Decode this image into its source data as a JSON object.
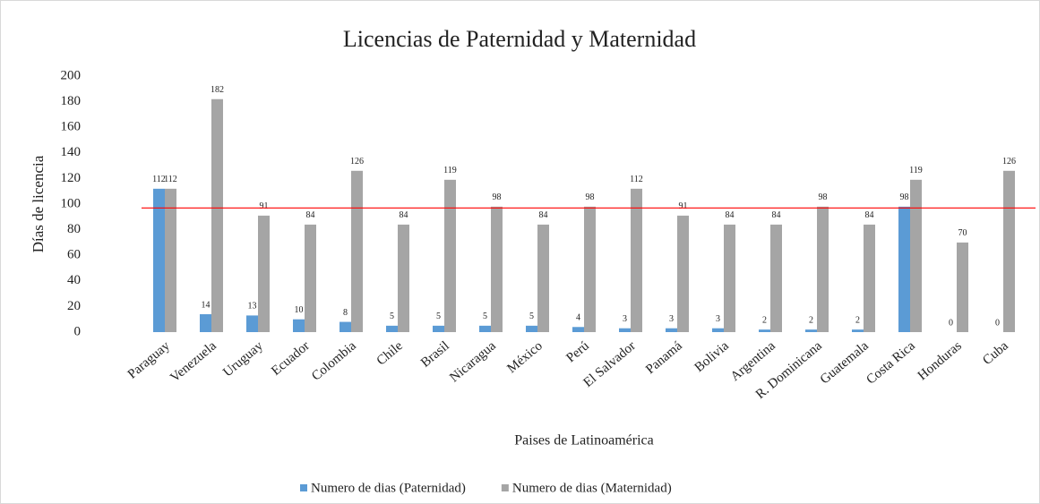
{
  "chart_data": {
    "type": "bar",
    "title": "Licencias de Paternidad y Maternidad",
    "x_label": "Paises de Latinoamérica",
    "y_label": "Días de licencia",
    "categories": [
      "Paraguay",
      "Venezuela",
      "Uruguay",
      "Ecuador",
      "Colombia",
      "Chile",
      "Brasil",
      "Nicaragua",
      "México",
      "Perú",
      "El Salvador",
      "Panamá",
      "Bolivia",
      "Argentina",
      "R. Dominicana",
      "Guatemala",
      "Costa Rica",
      "Honduras",
      "Cuba"
    ],
    "series": [
      {
        "name": "Numero de dias (Paternidad)",
        "color": "#5b9bd5",
        "values": [
          112,
          14,
          13,
          10,
          8,
          5,
          5,
          5,
          5,
          4,
          3,
          3,
          3,
          2,
          2,
          2,
          98,
          0,
          0
        ]
      },
      {
        "name": "Numero de dias (Maternidad)",
        "color": "#a5a5a5",
        "values": [
          112,
          182,
          91,
          84,
          126,
          84,
          119,
          98,
          84,
          98,
          112,
          91,
          84,
          84,
          98,
          84,
          119,
          70,
          126
        ]
      }
    ],
    "reference_line": 97,
    "reference_color": "#ff0000",
    "ylim": [
      0,
      200
    ],
    "yticks": [
      0,
      20,
      40,
      60,
      80,
      100,
      120,
      140,
      160,
      180,
      200
    ],
    "grid": false,
    "legend": "bottom"
  }
}
